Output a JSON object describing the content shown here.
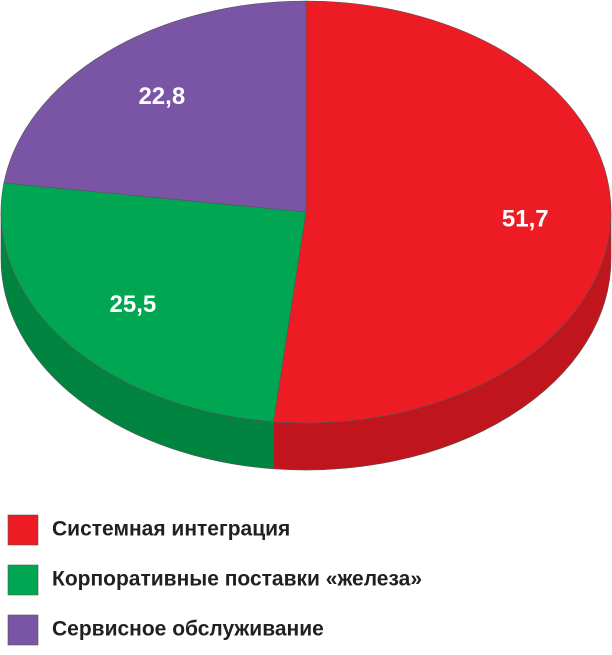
{
  "chart_data": {
    "type": "pie3d",
    "categories": [
      "Системная интеграция",
      "Корпоративные поставки «железа»",
      "Сервисное обслуживание"
    ],
    "values": [
      51.7,
      25.5,
      22.8
    ],
    "value_labels": [
      "51,7",
      "25,5",
      "22,8"
    ],
    "colors": [
      "#ed1c24",
      "#00a651",
      "#7a54a5"
    ],
    "side_colors": [
      "#c1151d",
      "#00843f",
      "#5f3f86"
    ],
    "legend": "bottom-left"
  }
}
